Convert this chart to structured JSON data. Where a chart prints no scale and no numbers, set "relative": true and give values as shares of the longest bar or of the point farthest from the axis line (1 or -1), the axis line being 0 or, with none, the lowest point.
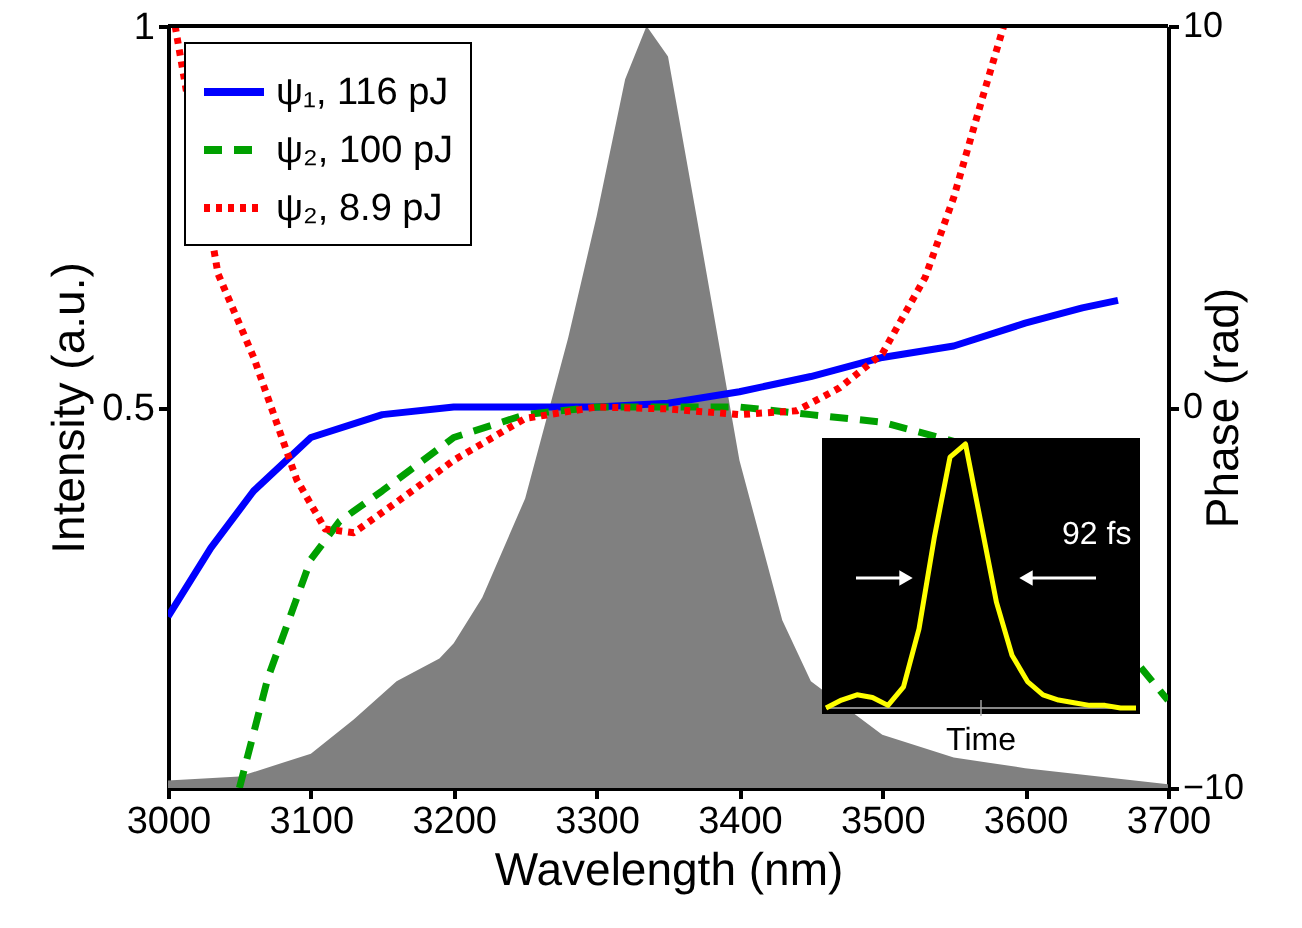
{
  "chart_data": [
    {
      "type": "area",
      "xlabel": "Wavelength (nm)",
      "ylabel": "Intensity (a.u.)",
      "y2label": "Phase (rad)",
      "xlim": [
        3000,
        3700
      ],
      "xticks": [
        3000,
        3100,
        3200,
        3300,
        3400,
        3500,
        3600,
        3700
      ],
      "ylim": [
        0,
        1
      ],
      "yticks": [
        0.5,
        1
      ],
      "y2lim": [
        -10,
        10
      ],
      "y2ticks": [
        -10,
        0,
        10
      ],
      "grid": false,
      "legend": "top left",
      "marker": "none",
      "series": [
        {
          "type": "area",
          "color": "#808080",
          "x": [
            3000,
            3050,
            3100,
            3130,
            3160,
            3190,
            3200,
            3220,
            3250,
            3280,
            3300,
            3320,
            3335,
            3350,
            3370,
            3400,
            3430,
            3450,
            3500,
            3550,
            3600,
            3700
          ],
          "values": [
            0.01,
            0.015,
            0.045,
            0.09,
            0.14,
            0.17,
            0.19,
            0.25,
            0.38,
            0.59,
            0.75,
            0.93,
            1.0,
            0.96,
            0.75,
            0.43,
            0.22,
            0.14,
            0.07,
            0.04,
            0.026,
            0.005
          ]
        },
        {
          "type": "line",
          "axis": "y2",
          "name": "ψ₁, 116 pJ",
          "color": "#0000ff",
          "line_style": "solid",
          "x": [
            3000,
            3030,
            3060,
            3100,
            3150,
            3200,
            3300,
            3350,
            3400,
            3450,
            3500,
            3550,
            3600,
            3640,
            3665
          ],
          "values": [
            -5.5,
            -3.7,
            -2.2,
            -0.8,
            -0.2,
            0,
            0,
            0.1,
            0.4,
            0.8,
            1.3,
            1.6,
            2.2,
            2.6,
            2.8
          ]
        },
        {
          "type": "line",
          "axis": "y2",
          "name": "ψ₂, 100 pJ",
          "color": "#00a000",
          "line_style": "dashed",
          "x": [
            3050,
            3070,
            3100,
            3120,
            3150,
            3200,
            3250,
            3300,
            3400,
            3450,
            3500,
            3550,
            3580,
            3620,
            3660,
            3700
          ],
          "values": [
            -10,
            -7.1,
            -4,
            -3,
            -2.2,
            -0.8,
            -0.2,
            0,
            0,
            -0.2,
            -0.4,
            -0.9,
            null,
            null,
            null,
            -7.7
          ]
        },
        {
          "type": "line",
          "axis": "y2",
          "name": "ψ₂, 8.9 pJ",
          "color": "#ff0000",
          "line_style": "dotted",
          "x": [
            3005,
            3035,
            3060,
            3090,
            3110,
            3130,
            3160,
            3200,
            3250,
            3300,
            3350,
            3400,
            3440,
            3470,
            3500,
            3530,
            3550,
            3570,
            3585
          ],
          "values": [
            10,
            3.5,
            1.3,
            -1.9,
            -3.2,
            -3.3,
            -2.5,
            -1.4,
            -0.3,
            0,
            -0.05,
            -0.2,
            -0.1,
            0.5,
            1.4,
            3.4,
            5.5,
            8.1,
            10
          ]
        }
      ]
    },
    {
      "type": "line",
      "relative": true,
      "xlabel": "Time",
      "tick_labels": false,
      "annotations": [
        "92 fs"
      ],
      "categories": [
        null,
        null,
        null,
        null,
        null,
        null,
        null,
        null,
        null,
        null,
        null,
        null,
        null,
        null,
        null,
        null,
        null,
        null,
        null,
        null,
        null
      ],
      "series": [
        {
          "color": "#ffff00",
          "values": [
            0.0,
            0.03,
            0.05,
            0.04,
            0.01,
            0.08,
            0.3,
            0.65,
            0.95,
            1.0,
            0.7,
            0.4,
            0.2,
            0.1,
            0.05,
            0.03,
            0.02,
            0.01,
            0.01,
            0.0,
            0.0
          ]
        }
      ]
    }
  ]
}
